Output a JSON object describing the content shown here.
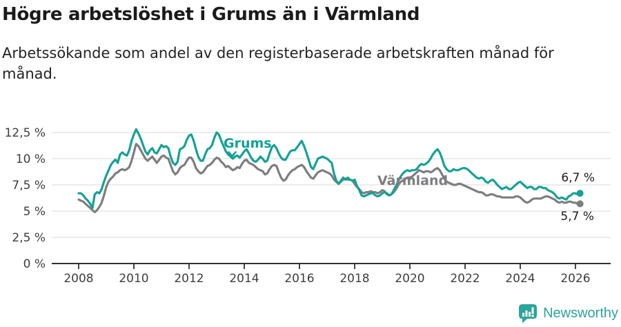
{
  "title": "Högre arbetslöshet i Grums än i Värmland",
  "subtitle": "Arbetssökande som andel av den registerbaserade arbetskraften månad för månad.",
  "branding": {
    "logo_text": "Newsworthy"
  },
  "colors": {
    "grums_teal": "#15a195",
    "varmland_gray": "#7d7d80",
    "grid": "#d8d8d8",
    "axis": "#2f2f2f",
    "tick_text": "#3d3d3d",
    "title_text": "#1b1b1b"
  },
  "chart_data": {
    "type": "line",
    "title": "Högre arbetslöshet i Grums än i Värmland",
    "subtitle": "Arbetssökande som andel av den registerbaserade arbetskraften månad för månad.",
    "y_axis": {
      "unit": "%",
      "range": [
        0,
        13.5
      ],
      "grid": true,
      "ticks": [
        {
          "value": 0,
          "label": "0 %"
        },
        {
          "value": 2.5,
          "label": "2,5 %"
        },
        {
          "value": 5,
          "label": "5 %"
        },
        {
          "value": 7.5,
          "label": "7,5 %"
        },
        {
          "value": 10,
          "label": "10 %"
        },
        {
          "value": 12.5,
          "label": "12,5 %"
        }
      ]
    },
    "x_axis": {
      "unit": "year, monthly data",
      "range": [
        2007.0,
        2027.3
      ],
      "ticks": [
        {
          "value": 2008,
          "label": "2008"
        },
        {
          "value": 2010,
          "label": "2010"
        },
        {
          "value": 2012,
          "label": "2012"
        },
        {
          "value": 2014,
          "label": "2014"
        },
        {
          "value": 2016,
          "label": "2016"
        },
        {
          "value": 2018,
          "label": "2018"
        },
        {
          "value": 2020,
          "label": "2020"
        },
        {
          "value": 2022,
          "label": "2022"
        },
        {
          "value": 2024,
          "label": "2024"
        },
        {
          "value": 2026,
          "label": "2026"
        }
      ]
    },
    "series": [
      {
        "name": "Grums",
        "color": "#15a195",
        "start_year": 2008,
        "step_months": 1,
        "end_label": "6,7 %",
        "end_value": 6.7,
        "values": [
          6.7,
          6.7,
          6.5,
          6.2,
          6.0,
          5.7,
          5.3,
          6.6,
          6.8,
          6.7,
          7.1,
          7.8,
          8.4,
          8.9,
          9.4,
          9.7,
          9.9,
          9.6,
          10.4,
          10.6,
          10.4,
          10.3,
          10.8,
          11.7,
          12.3,
          12.8,
          12.4,
          11.9,
          11.3,
          10.7,
          10.4,
          10.8,
          11.0,
          10.6,
          10.5,
          10.9,
          11.3,
          11.1,
          11.2,
          11.0,
          10.2,
          9.6,
          9.4,
          9.7,
          10.9,
          11.0,
          11.2,
          11.8,
          12.2,
          12.3,
          11.7,
          10.9,
          10.2,
          9.8,
          9.8,
          10.4,
          10.9,
          11.0,
          11.3,
          12.0,
          12.5,
          12.3,
          11.7,
          11.2,
          10.7,
          10.4,
          10.2,
          10.0,
          10.2,
          10.3,
          10.1,
          10.4,
          10.7,
          10.9,
          10.5,
          10.1,
          9.8,
          9.7,
          9.9,
          10.2,
          10.0,
          9.7,
          9.8,
          10.5,
          11.1,
          11.3,
          11.0,
          10.5,
          10.1,
          9.9,
          9.9,
          10.3,
          10.7,
          10.8,
          10.8,
          11.1,
          11.4,
          11.7,
          11.2,
          10.6,
          9.9,
          9.2,
          9.0,
          9.5,
          10.0,
          10.1,
          10.2,
          10.1,
          10.0,
          9.8,
          9.6,
          8.6,
          7.9,
          7.6,
          7.9,
          8.2,
          8.0,
          8.2,
          8.0,
          7.9,
          8.0,
          7.4,
          7.0,
          6.5,
          6.4,
          6.5,
          6.6,
          6.7,
          6.7,
          6.5,
          6.4,
          6.5,
          6.7,
          6.8,
          6.7,
          6.5,
          6.6,
          7.0,
          7.4,
          7.9,
          8.3,
          8.6,
          8.8,
          8.9,
          8.8,
          8.9,
          8.9,
          9.0,
          9.3,
          9.5,
          9.4,
          9.5,
          9.7,
          10.0,
          10.4,
          10.7,
          10.9,
          10.6,
          10.0,
          9.3,
          9.0,
          8.8,
          8.8,
          9.0,
          8.9,
          8.9,
          9.0,
          9.1,
          9.1,
          9.0,
          8.8,
          8.6,
          8.4,
          8.2,
          8.1,
          8.2,
          8.1,
          7.8,
          7.7,
          7.9,
          8.0,
          7.8,
          7.5,
          7.3,
          7.1,
          7.2,
          7.3,
          7.1,
          7.1,
          7.3,
          7.5,
          7.7,
          7.8,
          7.6,
          7.4,
          7.2,
          7.3,
          7.3,
          7.1,
          7.1,
          7.3,
          7.3,
          7.2,
          7.2,
          7.0,
          6.9,
          6.8,
          6.6,
          6.3,
          6.2,
          6.3,
          6.2,
          6.1,
          6.4,
          6.5,
          6.7,
          6.7,
          6.6,
          6.7
        ]
      },
      {
        "name": "Värmland",
        "color": "#7d7d80",
        "start_year": 2008,
        "step_months": 1,
        "end_label": "5,7 %",
        "end_value": 5.7,
        "values": [
          6.1,
          6.0,
          5.9,
          5.7,
          5.5,
          5.3,
          5.1,
          4.9,
          5.1,
          5.4,
          5.8,
          6.5,
          7.3,
          7.8,
          8.1,
          8.3,
          8.6,
          8.7,
          8.9,
          9.0,
          8.9,
          9.0,
          9.2,
          9.8,
          10.6,
          11.4,
          11.2,
          10.8,
          10.4,
          10.0,
          9.8,
          10.0,
          10.2,
          9.9,
          9.6,
          9.9,
          10.2,
          10.3,
          10.1,
          10.0,
          9.4,
          8.8,
          8.5,
          8.7,
          9.1,
          9.3,
          9.4,
          9.8,
          10.1,
          10.1,
          9.7,
          9.1,
          8.8,
          8.6,
          8.7,
          9.0,
          9.3,
          9.4,
          9.6,
          9.9,
          10.1,
          10.0,
          9.7,
          9.5,
          9.2,
          9.3,
          9.1,
          8.9,
          9.0,
          9.2,
          9.1,
          9.5,
          9.8,
          9.9,
          9.6,
          9.5,
          9.4,
          9.2,
          9.0,
          8.9,
          8.8,
          8.5,
          8.6,
          9.0,
          9.3,
          9.4,
          9.3,
          8.7,
          8.2,
          7.9,
          8.0,
          8.4,
          8.7,
          8.9,
          9.0,
          9.2,
          9.3,
          9.4,
          9.2,
          8.8,
          8.5,
          8.2,
          8.1,
          8.4,
          8.7,
          8.8,
          8.9,
          8.8,
          8.7,
          8.6,
          8.4,
          8.0,
          7.8,
          7.6,
          7.8,
          8.0,
          8.1,
          8.0,
          8.0,
          7.9,
          7.6,
          7.3,
          7.1,
          6.8,
          6.7,
          6.8,
          6.8,
          6.9,
          6.8,
          6.8,
          6.7,
          6.8,
          7.0,
          6.9,
          6.6,
          6.5,
          6.6,
          6.8,
          7.1,
          7.5,
          7.8,
          7.9,
          8.1,
          8.2,
          8.2,
          8.3,
          8.5,
          8.7,
          8.9,
          8.8,
          8.7,
          8.8,
          8.8,
          8.7,
          8.8,
          9.0,
          9.1,
          8.9,
          8.5,
          8.1,
          7.8,
          7.7,
          7.6,
          7.5,
          7.5,
          7.6,
          7.6,
          7.5,
          7.4,
          7.3,
          7.2,
          7.1,
          7.0,
          6.9,
          6.8,
          6.8,
          6.7,
          6.5,
          6.5,
          6.6,
          6.6,
          6.5,
          6.4,
          6.4,
          6.3,
          6.3,
          6.3,
          6.3,
          6.3,
          6.3,
          6.4,
          6.4,
          6.3,
          6.1,
          5.9,
          5.8,
          5.9,
          6.1,
          6.2,
          6.2,
          6.2,
          6.2,
          6.3,
          6.4,
          6.4,
          6.3,
          6.2,
          6.1,
          5.9,
          5.8,
          5.9,
          5.8,
          5.8,
          5.9,
          5.9,
          5.8,
          5.8,
          5.7,
          5.7
        ]
      }
    ],
    "annotations": [
      {
        "text": "Grums",
        "target_series": "Grums",
        "marker": "arrow-down"
      },
      {
        "text": "Värmland",
        "target_series": "Värmland",
        "marker": "none"
      }
    ]
  }
}
